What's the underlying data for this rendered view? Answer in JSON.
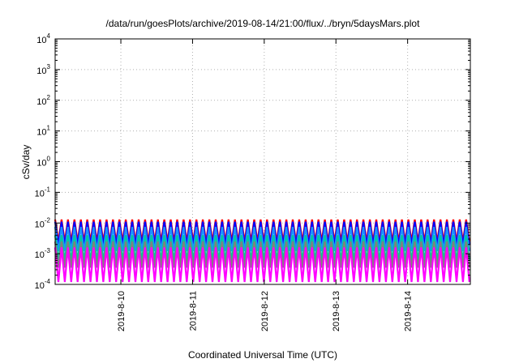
{
  "chart_data": {
    "type": "line",
    "title": "/data/run/goesPlots/archive/2019-08-14/21:00/flux/../bryn/5daysMars.plot",
    "xlabel": "Coordinated Universal Time (UTC)",
    "ylabel": "cSv/day",
    "yscale": "log",
    "ylim": [
      0.0001,
      10000
    ],
    "xlim": [
      "2019-08-09 02:00",
      "2019-08-14 21:00"
    ],
    "grid": true,
    "legend": "none",
    "y_ticks": [
      {
        "base": "10",
        "exp": "4"
      },
      {
        "base": "10",
        "exp": "3"
      },
      {
        "base": "10",
        "exp": "2"
      },
      {
        "base": "10",
        "exp": "1"
      },
      {
        "base": "10",
        "exp": "0"
      },
      {
        "base": "10",
        "exp": "-1"
      },
      {
        "base": "10",
        "exp": "-2"
      },
      {
        "base": "10",
        "exp": "-3"
      },
      {
        "base": "10",
        "exp": "-4"
      }
    ],
    "x_ticks": [
      "2019-8-10",
      "2019-8-11",
      "2019-8-12",
      "2019-8-13",
      "2019-8-14"
    ],
    "period_hours": 2.15,
    "series": [
      {
        "color": "#ff0000",
        "peak": 0.013,
        "trough": 0.0025
      },
      {
        "color": "#0000ff",
        "peak": 0.011,
        "trough": 0.0019
      },
      {
        "color": "#1e90ff",
        "peak": 0.0075,
        "trough": 0.0012
      },
      {
        "color": "#00c8a0",
        "peak": 0.004,
        "trough": 0.0006
      },
      {
        "color": "#808080",
        "peak": 0.0025,
        "trough": 0.00035
      },
      {
        "color": "#ff00ff",
        "peak": 0.0016,
        "trough": 0.00012
      }
    ]
  }
}
